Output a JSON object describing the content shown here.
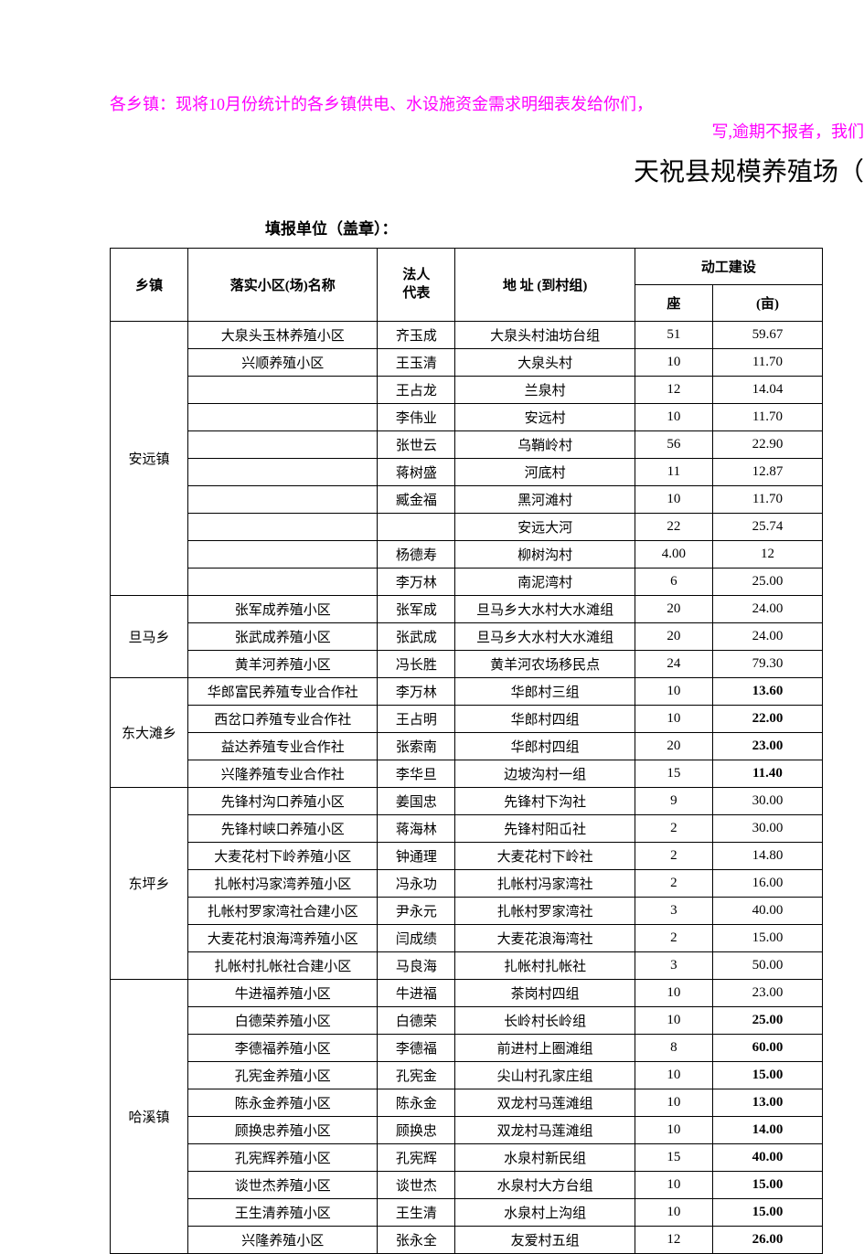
{
  "notice_line1": "各乡镇：现将10月份统计的各乡镇供电、水设施资金需求明细表发给你们，",
  "notice_line2": "写,逾期不报者，我们",
  "main_title": "天祝县规模养殖场（",
  "sub_title": "填报单位（盖章）：",
  "colors": {
    "notice": "#ff00ff",
    "text": "#000000",
    "background": "#ffffff",
    "border": "#000000"
  },
  "table": {
    "type": "table",
    "header": {
      "township": "乡镇",
      "farm_name": "落实小区(场)名称",
      "legal_rep": "法人\n代表",
      "address": "地 址 (到村组)",
      "construction": "动工建设",
      "zuo": "座",
      "mu": "(亩)"
    },
    "column_widths": {
      "township": 78,
      "farm": 190,
      "rep": 78,
      "addr": 180,
      "zuo": 78,
      "mu": 110
    },
    "groups": [
      {
        "township": "安远镇",
        "rows": [
          {
            "farm": "大泉头玉林养殖小区",
            "rep": "齐玉成",
            "addr": "大泉头村油坊台组",
            "zuo": "51",
            "mu": "59.67",
            "bold": false
          },
          {
            "farm": "兴顺养殖小区",
            "rep": "王玉清",
            "addr": "大泉头村",
            "zuo": "10",
            "mu": "11.70",
            "bold": false
          },
          {
            "farm": "",
            "rep": "王占龙",
            "addr": "兰泉村",
            "zuo": "12",
            "mu": "14.04",
            "bold": false
          },
          {
            "farm": "",
            "rep": "李伟业",
            "addr": "安远村",
            "zuo": "10",
            "mu": "11.70",
            "bold": false
          },
          {
            "farm": "",
            "rep": "张世云",
            "addr": "乌鞘岭村",
            "zuo": "56",
            "mu": "22.90",
            "bold": false
          },
          {
            "farm": "",
            "rep": "蒋树盛",
            "addr": "河底村",
            "zuo": "11",
            "mu": "12.87",
            "bold": false
          },
          {
            "farm": "",
            "rep": "臧金福",
            "addr": "黑河滩村",
            "zuo": "10",
            "mu": "11.70",
            "bold": false
          },
          {
            "farm": "",
            "rep": "",
            "addr": "安远大河",
            "zuo": "22",
            "mu": "25.74",
            "bold": false
          },
          {
            "farm": "",
            "rep": "杨德寿",
            "addr": "柳树沟村",
            "zuo": "4.00",
            "mu": "12",
            "bold": false
          },
          {
            "farm": "",
            "rep": "李万林",
            "addr": "南泥湾村",
            "zuo": "6",
            "mu": "25.00",
            "bold": false
          }
        ]
      },
      {
        "township": "旦马乡",
        "rows": [
          {
            "farm": "张军成养殖小区",
            "rep": "张军成",
            "addr": "旦马乡大水村大水滩组",
            "zuo": "20",
            "mu": "24.00",
            "bold": false
          },
          {
            "farm": "张武成养殖小区",
            "rep": "张武成",
            "addr": "旦马乡大水村大水滩组",
            "zuo": "20",
            "mu": "24.00",
            "bold": false
          },
          {
            "farm": "黄羊河养殖小区",
            "rep": "冯长胜",
            "addr": "黄羊河农场移民点",
            "zuo": "24",
            "mu": "79.30",
            "bold": false
          }
        ]
      },
      {
        "township": "东大滩乡",
        "rows": [
          {
            "farm": "华郎富民养殖专业合作社",
            "rep": "李万林",
            "addr": "华郎村三组",
            "zuo": "10",
            "mu": "13.60",
            "bold": true
          },
          {
            "farm": "西岔口养殖专业合作社",
            "rep": "王占明",
            "addr": "华郎村四组",
            "zuo": "10",
            "mu": "22.00",
            "bold": true
          },
          {
            "farm": "益达养殖专业合作社",
            "rep": "张索南",
            "addr": "华郎村四组",
            "zuo": "20",
            "mu": "23.00",
            "bold": true
          },
          {
            "farm": "兴隆养殖专业合作社",
            "rep": "李华旦",
            "addr": "边坡沟村一组",
            "zuo": "15",
            "mu": "11.40",
            "bold": true
          }
        ]
      },
      {
        "township": "东坪乡",
        "rows": [
          {
            "farm": "先锋村沟口养殖小区",
            "rep": "姜国忠",
            "addr": "先锋村下沟社",
            "zuo": "9",
            "mu": "30.00",
            "bold": false
          },
          {
            "farm": "先锋村峡口养殖小区",
            "rep": "蒋海林",
            "addr": "先锋村阳屲社",
            "zuo": "2",
            "mu": "30.00",
            "bold": false
          },
          {
            "farm": "大麦花村下岭养殖小区",
            "rep": "钟通理",
            "addr": "大麦花村下岭社",
            "zuo": "2",
            "mu": "14.80",
            "bold": false
          },
          {
            "farm": "扎帐村冯家湾养殖小区",
            "rep": "冯永功",
            "addr": "扎帐村冯家湾社",
            "zuo": "2",
            "mu": "16.00",
            "bold": false
          },
          {
            "farm": "扎帐村罗家湾社合建小区",
            "rep": "尹永元",
            "addr": "扎帐村罗家湾社",
            "zuo": "3",
            "mu": "40.00",
            "bold": false
          },
          {
            "farm": "大麦花村浪海湾养殖小区",
            "rep": "闫成绩",
            "addr": "大麦花浪海湾社",
            "zuo": "2",
            "mu": "15.00",
            "bold": false
          },
          {
            "farm": "扎帐村扎帐社合建小区",
            "rep": "马良海",
            "addr": "扎帐村扎帐社",
            "zuo": "3",
            "mu": "50.00",
            "bold": false
          }
        ]
      },
      {
        "township": "哈溪镇",
        "rows": [
          {
            "farm": "牛进福养殖小区",
            "rep": "牛进福",
            "addr": "茶岗村四组",
            "zuo": "10",
            "mu": "23.00",
            "bold": false
          },
          {
            "farm": "白德荣养殖小区",
            "rep": "白德荣",
            "addr": "长岭村长岭组",
            "zuo": "10",
            "mu": "25.00",
            "bold": true
          },
          {
            "farm": "李德福养殖小区",
            "rep": "李德福",
            "addr": "前进村上圈滩组",
            "zuo": "8",
            "mu": "60.00",
            "bold": true
          },
          {
            "farm": "孔宪金养殖小区",
            "rep": "孔宪金",
            "addr": "尖山村孔家庄组",
            "zuo": "10",
            "mu": "15.00",
            "bold": true
          },
          {
            "farm": "陈永金养殖小区",
            "rep": "陈永金",
            "addr": "双龙村马莲滩组",
            "zuo": "10",
            "mu": "13.00",
            "bold": true
          },
          {
            "farm": "顾换忠养殖小区",
            "rep": "顾换忠",
            "addr": "双龙村马莲滩组",
            "zuo": "10",
            "mu": "14.00",
            "bold": true
          },
          {
            "farm": "孔宪辉养殖小区",
            "rep": "孔宪辉",
            "addr": "水泉村新民组",
            "zuo": "15",
            "mu": "40.00",
            "bold": true
          },
          {
            "farm": "谈世杰养殖小区",
            "rep": "谈世杰",
            "addr": "水泉村大方台组",
            "zuo": "10",
            "mu": "15.00",
            "bold": true
          },
          {
            "farm": "王生清养殖小区",
            "rep": "王生清",
            "addr": "水泉村上沟组",
            "zuo": "10",
            "mu": "15.00",
            "bold": true
          },
          {
            "farm": "兴隆养殖小区",
            "rep": "张永全",
            "addr": "友爱村五组",
            "zuo": "12",
            "mu": "26.00",
            "bold": true
          }
        ]
      }
    ]
  }
}
